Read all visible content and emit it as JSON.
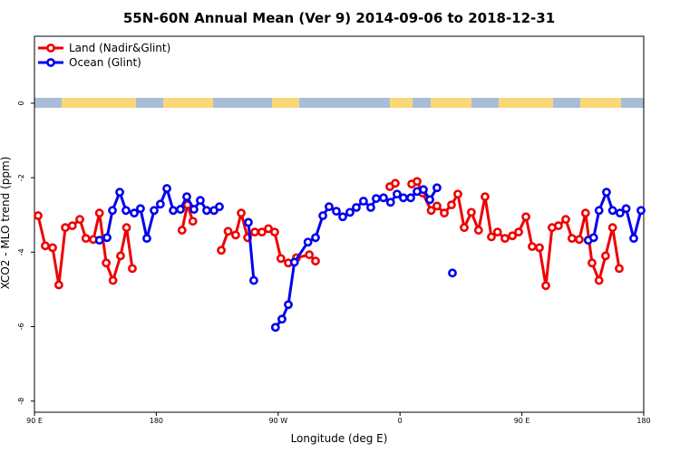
{
  "chart_data": {
    "type": "line",
    "title": "55N-60N Annual Mean (Ver 9)   2014-09-06 to 2018-12-31",
    "x_label": "Longitude (deg E)",
    "y_label": "XCO2 - MLO trend (ppm)",
    "xlim": [
      90,
      540
    ],
    "xticks": [
      {
        "value": 90,
        "label": "90 E"
      },
      180,
      {
        "value": 270,
        "label": "90 W"
      },
      {
        "value": 360,
        "label": "0"
      },
      {
        "value": 450,
        "label": "90 E"
      },
      {
        "value": 540,
        "label": "180"
      }
    ],
    "ylim": [
      -8.3,
      1.8
    ],
    "yticks": [
      0,
      -2,
      -4,
      -6,
      -8
    ],
    "legend": "top-left",
    "series": [
      {
        "name": "Land (Nadir&Glint)",
        "color": "#ee0000",
        "x": [
          92.7,
          98,
          103.4,
          108,
          112.8,
          118,
          123.5,
          128,
          133.5,
          138,
          143,
          148,
          153.6,
          158,
          162.3,
          null,
          199,
          203,
          207,
          null,
          228,
          233,
          238.6,
          242.7,
          247.4,
          252.7,
          258,
          262.8,
          267.4,
          272,
          277.5,
          283.5,
          293,
          297.6,
          null,
          352.5,
          356.5,
          null,
          368.6,
          372.6,
          376.6,
          383,
          387.3,
          392.7,
          398,
          402.7,
          407.4,
          412.7,
          418,
          422.8,
          427.5,
          432,
          437.5,
          443,
          447.6,
          453,
          457.6,
          463,
          467.7,
          472.3,
          477,
          482.4,
          487,
          492.4,
          497,
          501.8,
          507,
          511.8,
          517,
          521.9
        ],
        "values": [
          -3.02,
          -3.83,
          -3.88,
          -4.88,
          -3.34,
          -3.29,
          -3.12,
          -3.63,
          -3.66,
          -2.95,
          -4.29,
          -4.76,
          -4.1,
          -3.34,
          -4.44,
          null,
          -3.41,
          -2.73,
          -3.17,
          null,
          -3.95,
          -3.44,
          -3.54,
          -2.95,
          -3.61,
          -3.46,
          -3.46,
          -3.37,
          -3.46,
          -4.17,
          -4.29,
          -4.15,
          -4.07,
          -4.24,
          null,
          -2.24,
          -2.15,
          null,
          -2.17,
          -2.1,
          -2.41,
          -2.88,
          -2.76,
          -2.95,
          -2.73,
          -2.44,
          -3.34,
          -2.93,
          -3.41,
          -2.51,
          -3.59,
          -3.46,
          -3.63,
          -3.56,
          -3.46,
          -3.05,
          -3.85,
          -3.88,
          -4.9,
          -3.34,
          -3.29,
          -3.12,
          -3.63,
          -3.66,
          -2.95,
          -4.29,
          -4.76,
          -4.1,
          -3.34,
          -4.44
        ]
      },
      {
        "name": "Ocean (Glint)",
        "color": "#0000ee",
        "x": [
          138,
          143.6,
          147.6,
          153,
          157.6,
          163.7,
          168.3,
          173,
          178.4,
          183,
          187.8,
          192.5,
          197.8,
          202.5,
          207.8,
          212.5,
          217.2,
          222.6,
          226.6,
          null,
          248,
          252,
          null,
          268,
          272.8,
          277.5,
          282,
          292,
          297.6,
          303,
          307.6,
          313,
          317.7,
          323,
          327.7,
          333,
          338.4,
          342.4,
          347.8,
          353,
          357.8,
          362.5,
          367.9,
          372.6,
          377.3,
          382,
          387.3,
          null,
          398.7,
          null,
          499,
          503,
          507,
          512.5,
          517,
          522.5,
          527,
          532.6,
          538
        ],
        "values": [
          -3.68,
          -3.61,
          -2.88,
          -2.39,
          -2.88,
          -2.95,
          -2.83,
          -3.63,
          -2.88,
          -2.71,
          -2.29,
          -2.88,
          -2.85,
          -2.51,
          -2.85,
          -2.61,
          -2.88,
          -2.88,
          -2.78,
          null,
          -3.2,
          -4.76,
          null,
          -6.02,
          -5.8,
          -5.41,
          -4.27,
          -3.73,
          -3.61,
          -3.02,
          -2.78,
          -2.9,
          -3.05,
          -2.93,
          -2.8,
          -2.63,
          -2.8,
          -2.56,
          -2.54,
          -2.66,
          -2.44,
          -2.54,
          -2.54,
          -2.37,
          -2.32,
          -2.59,
          -2.27,
          null,
          -4.56,
          null,
          -3.68,
          -3.61,
          -2.88,
          -2.39,
          -2.88,
          -2.95,
          -2.83,
          -3.63,
          -2.88
        ]
      }
    ]
  }
}
